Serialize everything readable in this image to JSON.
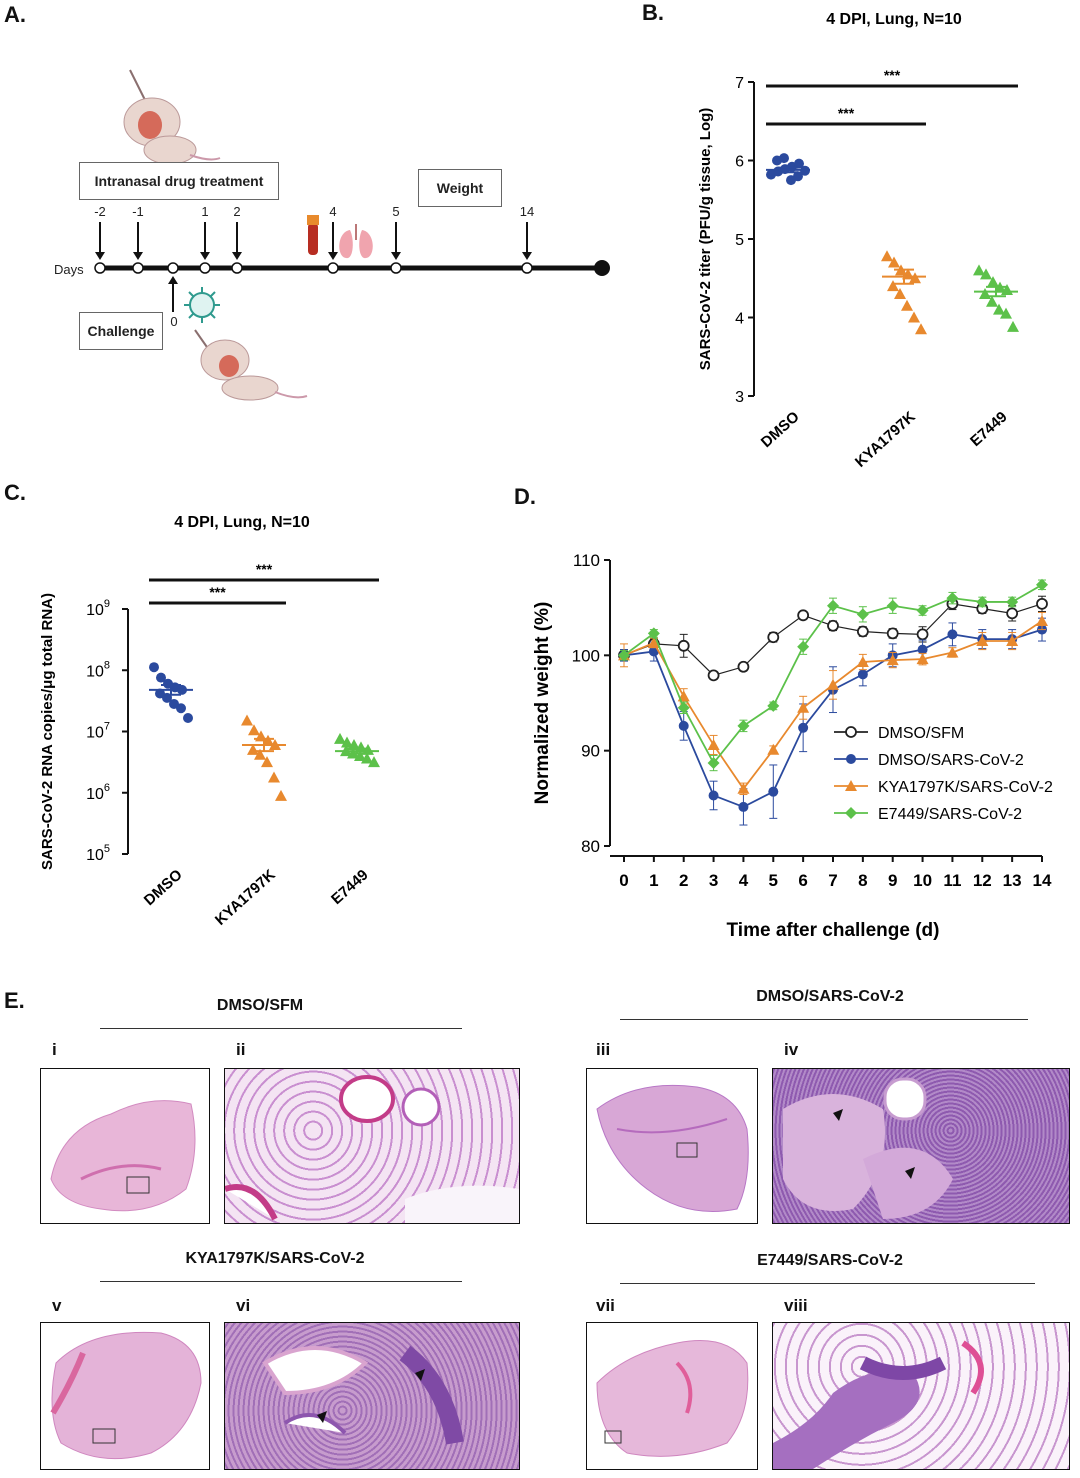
{
  "panel_labels": {
    "a": "A.",
    "b": "B.",
    "c": "C.",
    "d": "D.",
    "e": "E."
  },
  "timeline": {
    "treatment_label": "Intranasal drug treatment",
    "weight_label": "Weight",
    "challenge_label": "Challenge",
    "days_label": "Days",
    "day_ticks": [
      "-2",
      "-1",
      "1",
      "2",
      "4",
      "5",
      "14"
    ],
    "challenge_day": "0"
  },
  "chart_data": [
    {
      "id": "B",
      "type": "scatter",
      "title": "4 DPI, Lung, N=10",
      "ylabel": "SARS-CoV-2 titer (PFU/g tissue, Log)",
      "categories": [
        "DMSO",
        "KYA1797K",
        "E7449"
      ],
      "ylim": [
        3,
        7
      ],
      "yticks": [
        "3",
        "4",
        "5",
        "6",
        "7"
      ],
      "series": [
        {
          "values": [
            5.82,
            5.86,
            5.89,
            5.92,
            5.96,
            6.0,
            6.03,
            5.75,
            5.8,
            5.87
          ],
          "mean": 5.88,
          "sem": 0.03,
          "color": "#2b4a9e"
        },
        {
          "values": [
            4.78,
            4.7,
            4.6,
            4.55,
            4.5,
            4.4,
            4.3,
            4.15,
            4.0,
            3.85
          ],
          "mean": 4.52,
          "sem": 0.09,
          "color": "#e8892e"
        },
        {
          "values": [
            4.6,
            4.55,
            4.45,
            4.38,
            4.35,
            4.3,
            4.2,
            4.1,
            4.05,
            3.88
          ],
          "mean": 4.33,
          "sem": 0.06,
          "color": "#5cc14a"
        }
      ],
      "significance": [
        {
          "label": "***",
          "from": 0,
          "to": 1
        },
        {
          "label": "***",
          "from": 0,
          "to": 2
        }
      ]
    },
    {
      "id": "C",
      "type": "scatter",
      "title": "4 DPI, Lung, N=10",
      "ylabel": "SARS-CoV-2 RNA copies/μg total RNA)",
      "categories": [
        "DMSO",
        "KYA1797K",
        "E7449"
      ],
      "yscale": "log",
      "ylim": [
        5,
        9
      ],
      "yticks": [
        "5",
        "6",
        "7",
        "8",
        "9"
      ],
      "series": [
        {
          "values": [
            8.05,
            7.88,
            7.78,
            7.72,
            7.68,
            7.62,
            7.55,
            7.45,
            7.38,
            7.22
          ],
          "mean": 7.68,
          "sem": 0.08,
          "color": "#2b4a9e"
        },
        {
          "values": [
            7.18,
            7.02,
            6.92,
            6.85,
            6.78,
            6.7,
            6.62,
            6.5,
            6.25,
            5.95
          ],
          "mean": 6.78,
          "sem": 0.1,
          "color": "#e8892e"
        },
        {
          "values": [
            6.88,
            6.82,
            6.78,
            6.74,
            6.7,
            6.68,
            6.64,
            6.6,
            6.56,
            6.5
          ],
          "mean": 6.68,
          "sem": 0.04,
          "color": "#5cc14a"
        }
      ],
      "significance": [
        {
          "label": "***",
          "from": 0,
          "to": 1
        },
        {
          "label": "***",
          "from": 0,
          "to": 2
        }
      ]
    },
    {
      "id": "D",
      "type": "line",
      "xlabel": "Time after challenge (d)",
      "ylabel": "Normalized weight (%)",
      "x": [
        0,
        1,
        2,
        3,
        4,
        5,
        6,
        7,
        8,
        9,
        10,
        11,
        12,
        13,
        14
      ],
      "ylim": [
        80,
        110
      ],
      "yticks": [
        80,
        90,
        100,
        110
      ],
      "legend_position": "right",
      "series": [
        {
          "name": "DMSO/SFM",
          "marker": "open-circle",
          "color": "#222222",
          "values": [
            100,
            101.2,
            101,
            97.9,
            98.8,
            101.9,
            104.2,
            103.1,
            102.5,
            102.3,
            102.2,
            105.4,
            104.9,
            104.4,
            105.4
          ],
          "err": [
            0.6,
            0.5,
            1.2,
            0.4,
            0.4,
            0.5,
            0.4,
            0.5,
            0.5,
            0.5,
            0.8,
            0.6,
            0.5,
            0.8,
            0.8
          ]
        },
        {
          "name": "DMSO/SARS-CoV-2",
          "marker": "circle",
          "color": "#2b4a9e",
          "values": [
            100,
            100.4,
            92.6,
            85.3,
            84.1,
            85.7,
            92.4,
            96.4,
            98,
            100,
            100.6,
            102.2,
            101.7,
            101.7,
            102.7
          ],
          "err": [
            0.6,
            1.0,
            1.5,
            1.5,
            1.9,
            2.8,
            2.5,
            2.4,
            1.2,
            1.2,
            1.0,
            1.2,
            1.0,
            1.0,
            1.2
          ]
        },
        {
          "name": "KYA1797K/SARS-CoV-2",
          "marker": "triangle",
          "color": "#e8892e",
          "values": [
            100,
            101.3,
            95.7,
            90.6,
            86,
            90.1,
            94.5,
            96.9,
            99.3,
            99.5,
            99.6,
            100.3,
            101.5,
            101.5,
            103.6
          ],
          "err": [
            1.2,
            0.5,
            0.8,
            1.0,
            0.6,
            0.4,
            1.2,
            1.5,
            0.8,
            0.8,
            0.6,
            0.5,
            0.9,
            0.9,
            0.9
          ]
        },
        {
          "name": "E7449/SARS-CoV-2",
          "marker": "diamond",
          "color": "#5cc14a",
          "values": [
            100,
            102.3,
            94.5,
            88.7,
            92.6,
            94.7,
            100.9,
            105.2,
            104.3,
            105.2,
            104.7,
            106,
            105.6,
            105.6,
            107.4
          ],
          "err": [
            0.5,
            0.4,
            0.6,
            0.8,
            0.6,
            0.4,
            0.8,
            0.8,
            0.8,
            0.8,
            0.5,
            0.6,
            0.5,
            0.5,
            0.5
          ]
        }
      ]
    }
  ],
  "histology": {
    "groups": [
      "DMSO/SFM",
      "DMSO/SARS-CoV-2",
      "KYA1797K/SARS-CoV-2",
      "E7449/SARS-CoV-2"
    ],
    "labels": [
      "i",
      "ii",
      "iii",
      "iv",
      "v",
      "vi",
      "vii",
      "viii"
    ]
  }
}
